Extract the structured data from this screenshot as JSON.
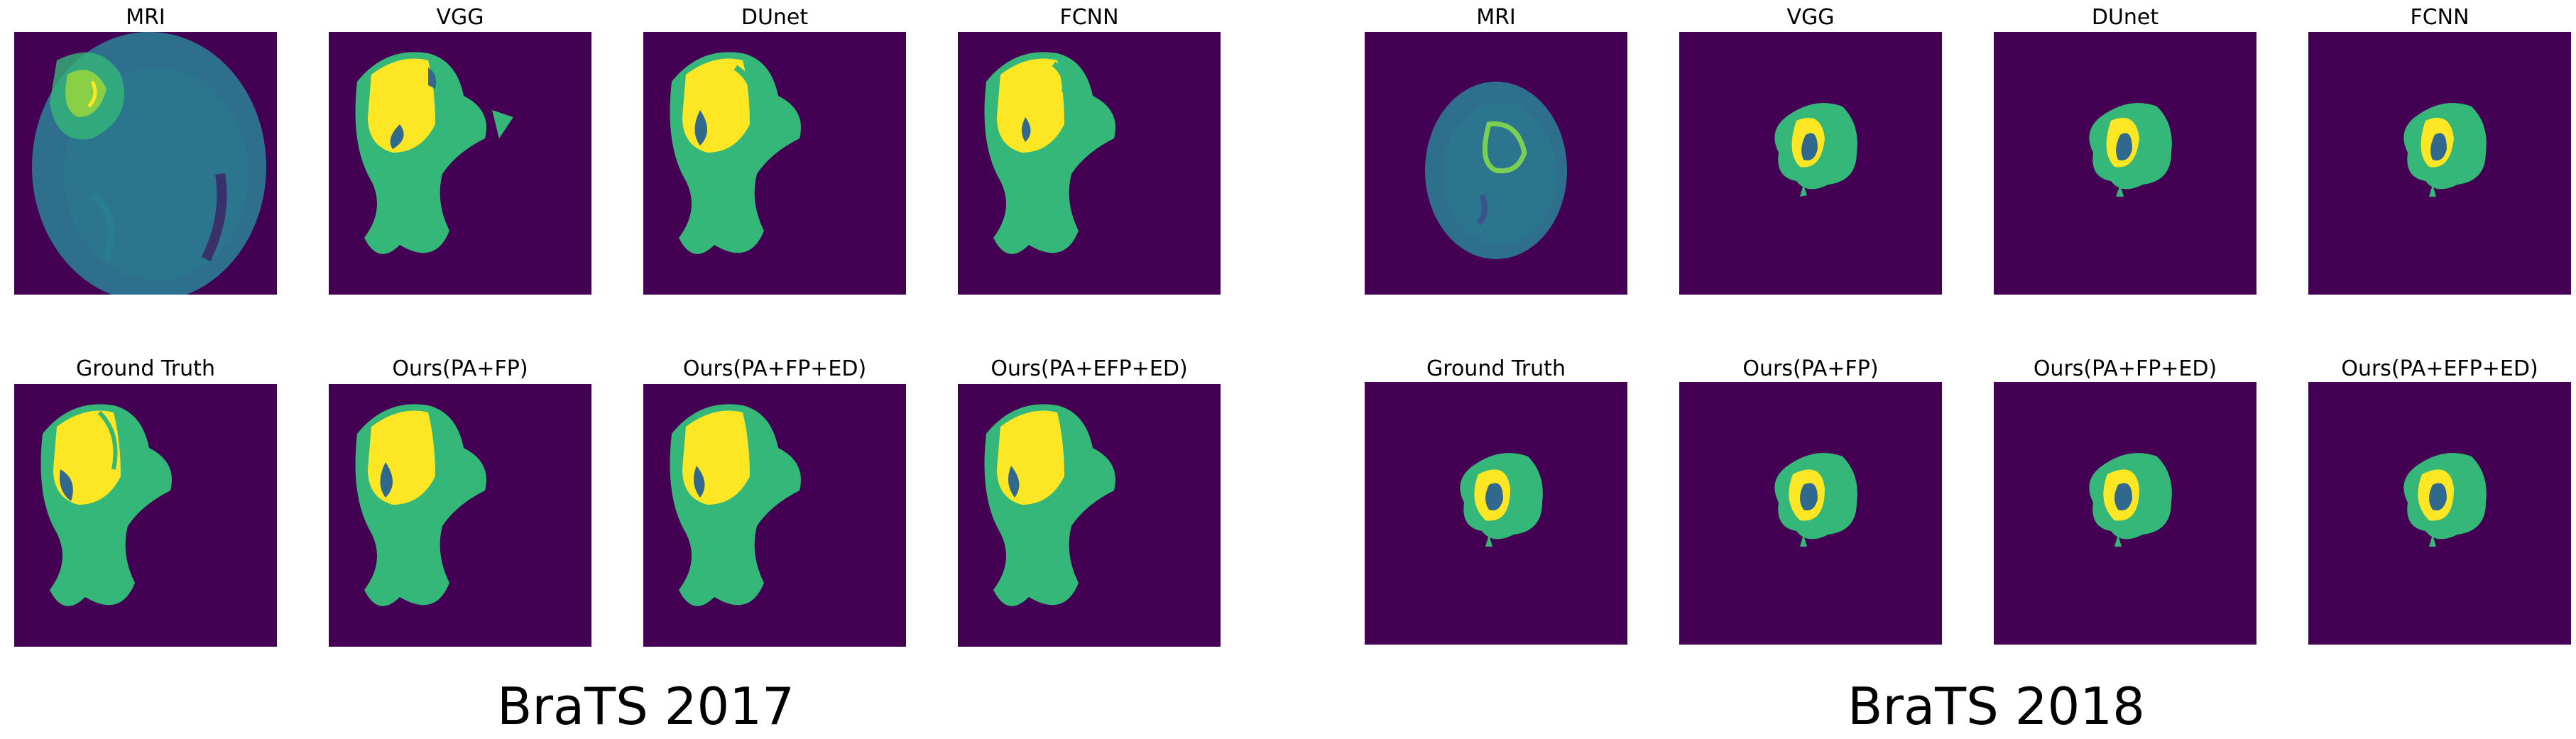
{
  "colors": {
    "background": "#440154",
    "edema": "#35b779",
    "enhancing": "#fde725",
    "core": "#31688e",
    "mri_tissue": "#2f6f8e"
  },
  "groups": [
    {
      "caption": "BraTS 2017",
      "panels": [
        {
          "title": "MRI",
          "kind": "mri"
        },
        {
          "title": "VGG",
          "kind": "seg"
        },
        {
          "title": "DUnet",
          "kind": "seg"
        },
        {
          "title": "FCNN",
          "kind": "seg"
        },
        {
          "title": "Ground Truth",
          "kind": "seg"
        },
        {
          "title": "Ours(PA+FP)",
          "kind": "seg"
        },
        {
          "title": "Ours(PA+FP+ED)",
          "kind": "seg"
        },
        {
          "title": "Ours(PA+EFP+ED)",
          "kind": "seg"
        }
      ]
    },
    {
      "caption": "BraTS 2018",
      "panels": [
        {
          "title": "MRI",
          "kind": "mri"
        },
        {
          "title": "VGG",
          "kind": "seg"
        },
        {
          "title": "DUnet",
          "kind": "seg"
        },
        {
          "title": "FCNN",
          "kind": "seg"
        },
        {
          "title": "Ground Truth",
          "kind": "seg"
        },
        {
          "title": "Ours(PA+FP)",
          "kind": "seg"
        },
        {
          "title": "Ours(PA+FP+ED)",
          "kind": "seg"
        },
        {
          "title": "Ours(PA+EFP+ED)",
          "kind": "seg"
        }
      ]
    }
  ]
}
